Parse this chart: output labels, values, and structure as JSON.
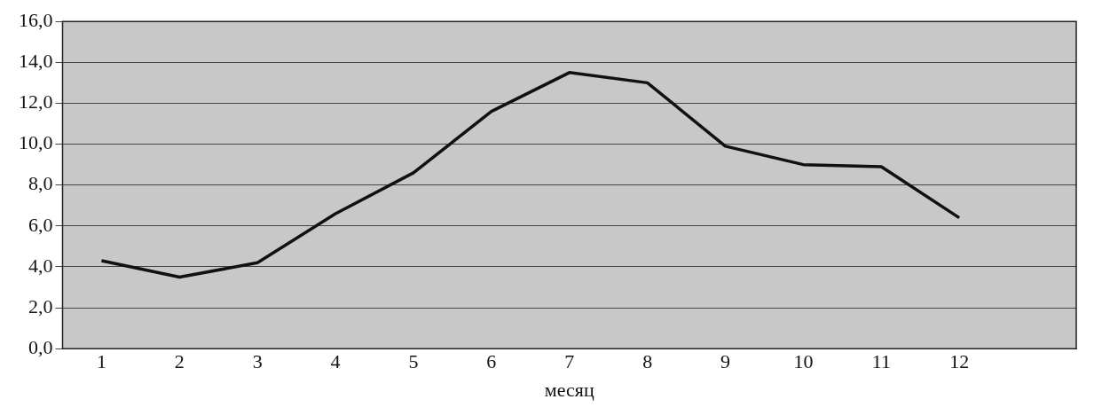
{
  "chart_data": {
    "type": "line",
    "xlabel": "месяц",
    "x": [
      1,
      2,
      3,
      4,
      5,
      6,
      7,
      8,
      9,
      10,
      11,
      12
    ],
    "values": [
      4.3,
      3.5,
      4.2,
      6.6,
      8.6,
      11.6,
      13.5,
      13.0,
      9.9,
      9.0,
      8.9,
      6.4
    ],
    "color": "#111111",
    "marker": "none",
    "line_style": "solid",
    "grid": "y",
    "legend": false,
    "xlim": [
      0.5,
      13.5
    ],
    "xticks": [
      1,
      2,
      3,
      4,
      5,
      6,
      7,
      8,
      9,
      10,
      11,
      12
    ],
    "ylim": [
      0,
      16
    ],
    "yticks": [
      {
        "value": 0,
        "label": "0,0"
      },
      {
        "value": 2,
        "label": "2,0"
      },
      {
        "value": 4,
        "label": "4,0"
      },
      {
        "value": 6,
        "label": "6,0"
      },
      {
        "value": 8,
        "label": "8,0"
      },
      {
        "value": 10,
        "label": "10,0"
      },
      {
        "value": 12,
        "label": "12,0"
      },
      {
        "value": 14,
        "label": "14,0"
      },
      {
        "value": 16,
        "label": "16,0"
      }
    ]
  }
}
